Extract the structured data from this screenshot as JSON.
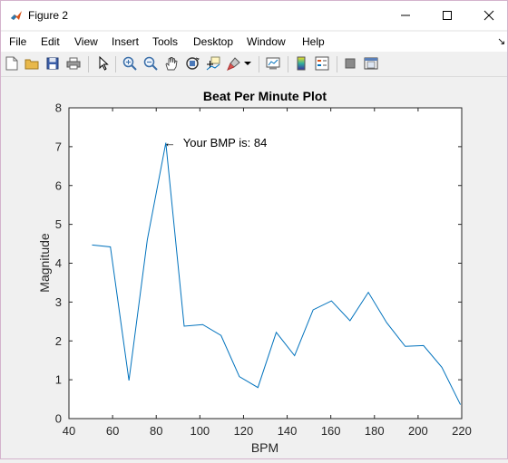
{
  "window": {
    "title": "Figure 2",
    "minimize_glyph": "—",
    "maximize_glyph": "☐",
    "close_glyph": "✕"
  },
  "menu": {
    "items": [
      "File",
      "Edit",
      "View",
      "Insert",
      "Tools",
      "Desktop",
      "Window",
      "Help"
    ],
    "dock_glyph": "↘"
  },
  "toolbar": {
    "icons": [
      "new-figure-icon",
      "open-file-icon",
      "save-icon",
      "print-icon",
      "edit-plot-icon",
      "zoom-in-icon",
      "zoom-out-icon",
      "pan-icon",
      "rotate-3d-icon",
      "data-cursor-icon",
      "brush-icon",
      "brush-dropdown-icon",
      "link-plot-icon",
      "colorbar-icon",
      "legend-icon",
      "hide-plot-tools-icon",
      "show-plot-tools-icon"
    ]
  },
  "colors": {
    "line": "#0072bd",
    "axes_bg": "#ffffff",
    "figure_bg": "#f0f0f0"
  },
  "chart_data": {
    "type": "line",
    "title": "Beat Per Minute Plot",
    "xlabel": "BPM",
    "ylabel": "Magnitude",
    "xlim": [
      40,
      220
    ],
    "ylim": [
      0,
      8
    ],
    "xticks": [
      40,
      60,
      80,
      100,
      120,
      140,
      160,
      180,
      200,
      220
    ],
    "yticks": [
      0,
      1,
      2,
      3,
      4,
      5,
      6,
      7,
      8
    ],
    "grid": false,
    "series": [
      {
        "x": [
          50.6,
          59,
          67.5,
          75.9,
          84.4,
          92.8,
          101.3,
          109.7,
          118.1,
          126.6,
          135,
          143.4,
          151.9,
          160.3,
          168.8,
          177.2,
          185.6,
          194.1,
          202.5,
          210.9,
          219.4
        ],
        "y": [
          4.47,
          4.42,
          0.98,
          4.6,
          7.1,
          2.38,
          2.42,
          2.14,
          1.08,
          0.8,
          2.22,
          1.62,
          2.8,
          3.03,
          2.52,
          3.25,
          2.47,
          1.86,
          1.88,
          1.32,
          0.36
        ]
      }
    ],
    "annotation": {
      "arrow": "←",
      "text": "Your BMP is:  84",
      "x": 84.4,
      "y": 7.1
    }
  }
}
